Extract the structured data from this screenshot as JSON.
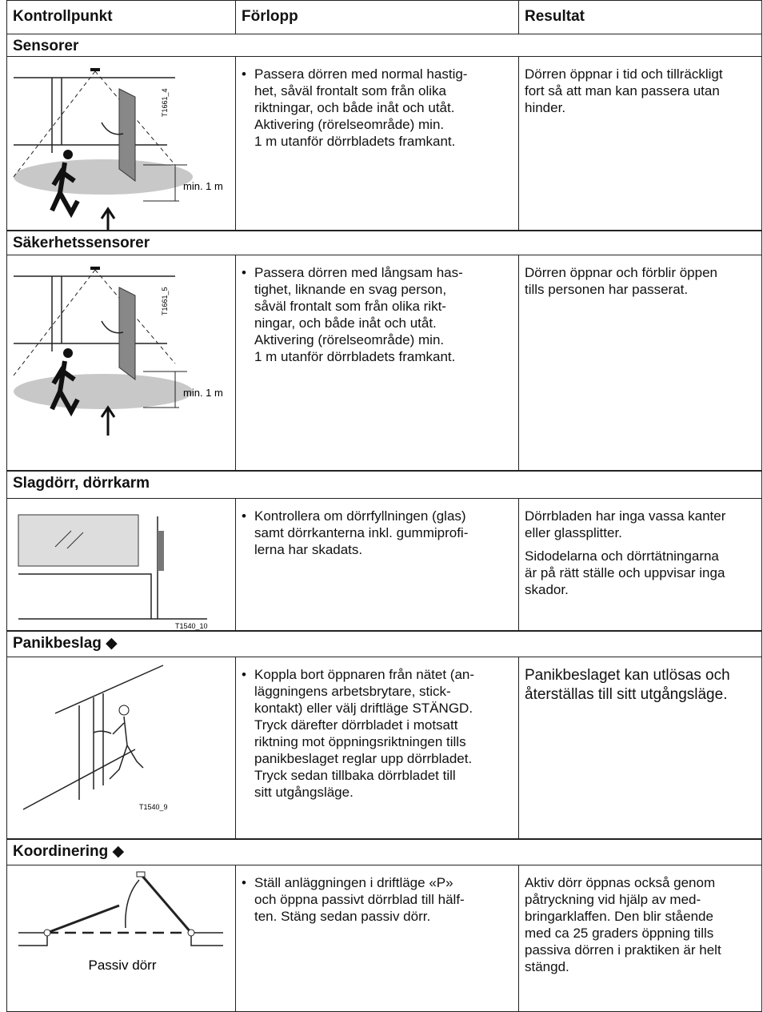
{
  "header": {
    "columns": [
      "Kontrollpunkt",
      "Förlopp",
      "Resultat"
    ]
  },
  "sections": [
    {
      "title": "Sensorer",
      "figure": {
        "dimension": "min. 1 m",
        "code": "T1661_4"
      },
      "procedure": [
        "Passera dörren med normal hastig-",
        "het, såväl frontalt som från olika",
        "riktningar, och både inåt och utåt.",
        "Aktivering (rörelseområde) min.",
        "1 m utanför dörrbladets framkant."
      ],
      "result": [
        [
          "Dörren öppnar i tid och tillräckligt",
          "fort så att man kan passera utan",
          "hinder."
        ]
      ]
    },
    {
      "title": "Säkerhetssensorer",
      "figure": {
        "dimension": "min. 1 m",
        "code": "T1661_5"
      },
      "procedure": [
        "Passera dörren med långsam has-",
        "tighet, liknande en svag person,",
        "såväl frontalt som från olika rikt-",
        "ningar, och både inåt och utåt.",
        "Aktivering (rörelseområde) min.",
        "1 m utanför dörrbladets framkant."
      ],
      "result": [
        [
          "Dörren öppnar och förblir öppen",
          "tills personen har passerat."
        ]
      ]
    },
    {
      "title": "Slagdörr, dörrkarm",
      "figure": {
        "code": "T1540_10"
      },
      "procedure": [
        "Kontrollera om dörrfyllningen (glas)",
        "samt dörrkanterna inkl. gummiprofi-",
        "lerna har skadats."
      ],
      "result": [
        [
          "Dörrbladen har inga vassa kanter",
          "eller glassplitter."
        ],
        [
          "Sidodelarna och dörrtätningarna",
          "är på rätt ställe och uppvisar inga",
          "skador."
        ]
      ]
    },
    {
      "title": "Panikbeslag ◆",
      "figure": {
        "code": "T1540_9"
      },
      "procedure": [
        "Koppla bort öppnaren från nätet (an-",
        "läggningens arbetsbrytare, stick-",
        "kontakt) eller välj driftläge STÄNGD.",
        "Tryck därefter dörrbladet i motsatt",
        "riktning mot öppningsriktningen tills",
        "panikbeslaget reglar upp dörrbladet.",
        "Tryck sedan tillbaka dörrbladet till",
        "sitt utgångsläge."
      ],
      "result": [
        [
          "Panikbeslaget kan utlösas och",
          "återställas till sitt utgångsläge."
        ]
      ]
    },
    {
      "title": "Koordinering ◆",
      "figure": {
        "caption": "Passiv dörr"
      },
      "procedure": [
        "Ställ anläggningen i driftläge «P»",
        "och öppna passivt dörrblad till hälf-",
        "ten. Stäng sedan passiv dörr."
      ],
      "result": [
        [
          "Aktiv dörr öppnas också genom",
          "påtryckning vid hjälp av med-",
          "bringarklaffen. Den blir stående",
          "med ca 25 graders öppning tills",
          "passiva dörren i praktiken är helt",
          "stängd."
        ]
      ]
    }
  ]
}
